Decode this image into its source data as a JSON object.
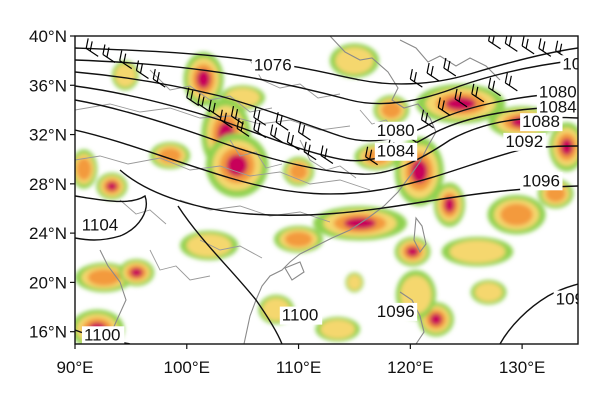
{
  "map": {
    "lat_ticks": [
      {
        "lat": 40,
        "label": "40°N"
      },
      {
        "lat": 36,
        "label": "36°N"
      },
      {
        "lat": 32,
        "label": "32°N"
      },
      {
        "lat": 28,
        "label": "28°N"
      },
      {
        "lat": 24,
        "label": "24°N"
      },
      {
        "lat": 20,
        "label": "20°N"
      },
      {
        "lat": 16,
        "label": "16°N"
      }
    ],
    "lon_ticks": [
      {
        "lon": 90,
        "label": "90°E"
      },
      {
        "lon": 100,
        "label": "100°E"
      },
      {
        "lon": 110,
        "label": "110°E"
      },
      {
        "lon": 120,
        "label": "120°E"
      },
      {
        "lon": 130,
        "label": "130°E"
      }
    ],
    "extent": {
      "lon_min": 90,
      "lon_max": 135,
      "lat_min": 15,
      "lat_max": 40
    },
    "shading_colors": {
      "light": "#8fd14f",
      "medium": "#f5d76e",
      "orange": "#f39a3d",
      "dark": "#c8005a"
    },
    "contour_labels": [
      {
        "text": "1076",
        "lon": 106.0,
        "lat": 37.2
      },
      {
        "text": "1080",
        "lon": 117.0,
        "lat": 31.9
      },
      {
        "text": "1084",
        "lon": 117.0,
        "lat": 30.2
      },
      {
        "text": "1092",
        "lon": 128.5,
        "lat": 31.0
      },
      {
        "text": "1096",
        "lon": 130.0,
        "lat": 27.8
      },
      {
        "text": "1104",
        "lon": 90.6,
        "lat": 24.2
      },
      {
        "text": "1100",
        "lon": 108.5,
        "lat": 16.9
      },
      {
        "text": "1100",
        "lon": 90.8,
        "lat": 15.3
      },
      {
        "text": "1096",
        "lon": 117.0,
        "lat": 17.2
      },
      {
        "text": "1080",
        "lon": 131.5,
        "lat": 35.0
      },
      {
        "text": "1084",
        "lon": 131.5,
        "lat": 33.8
      },
      {
        "text": "1088",
        "lon": 130.0,
        "lat": 32.6
      },
      {
        "text": "107",
        "lon": 133.6,
        "lat": 37.3
      },
      {
        "text": "109",
        "lon": 133.0,
        "lat": 18.2
      }
    ]
  }
}
